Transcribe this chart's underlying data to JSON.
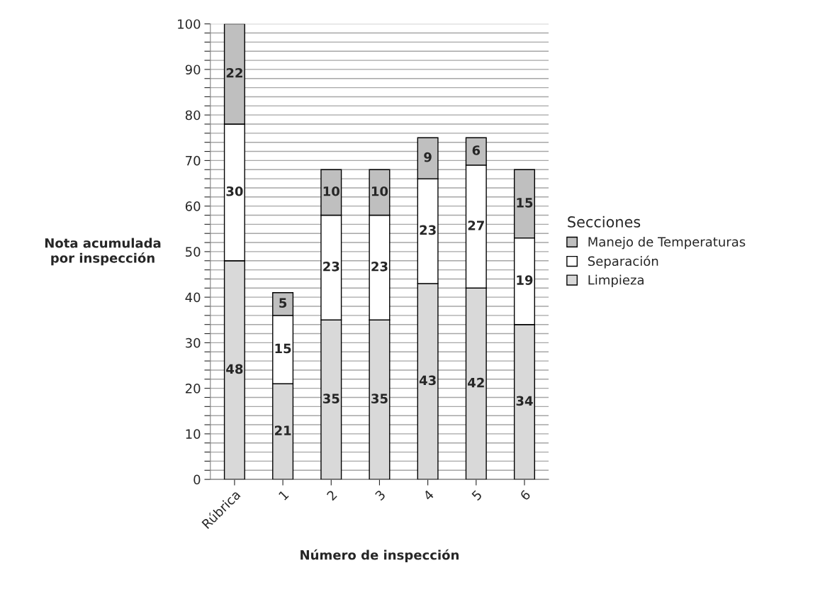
{
  "chart_data": {
    "type": "bar",
    "stacked": true,
    "xlabel": "Número de inspección",
    "ylabel": "Nota acumulada\npor inspección",
    "legend_title": "Secciones",
    "legend": "right",
    "grid": "y",
    "data_labels": true,
    "categories": [
      "Rúbrica",
      "1",
      "2",
      "3",
      "4",
      "5",
      "6"
    ],
    "series": [
      {
        "name": "Limpieza",
        "color": "#d9d9d9",
        "values": [
          48,
          21,
          35,
          35,
          43,
          42,
          34
        ]
      },
      {
        "name": "Separación",
        "color": "#ffffff",
        "values": [
          30,
          15,
          23,
          23,
          23,
          27,
          19
        ]
      },
      {
        "name": "Manejo de Temperaturas",
        "color": "#bfbfbf",
        "values": [
          22,
          5,
          10,
          10,
          9,
          6,
          15
        ]
      }
    ],
    "ylim": [
      0,
      100
    ],
    "yticks": [
      0,
      {
        "value": 2,
        "label": null
      },
      {
        "value": 4,
        "label": null
      },
      {
        "value": 6,
        "label": null
      },
      {
        "value": 8,
        "label": null
      },
      10,
      {
        "value": 12,
        "label": null
      },
      {
        "value": 14,
        "label": null
      },
      {
        "value": 16,
        "label": null
      },
      {
        "value": 18,
        "label": null
      },
      20,
      {
        "value": 22,
        "label": null
      },
      {
        "value": 24,
        "label": null
      },
      {
        "value": 26,
        "label": null
      },
      {
        "value": 28,
        "label": null
      },
      30,
      {
        "value": 32,
        "label": null
      },
      {
        "value": 34,
        "label": null
      },
      {
        "value": 36,
        "label": null
      },
      {
        "value": 38,
        "label": null
      },
      40,
      {
        "value": 42,
        "label": null
      },
      {
        "value": 44,
        "label": null
      },
      {
        "value": 46,
        "label": null
      },
      {
        "value": 48,
        "label": null
      },
      50,
      {
        "value": 52,
        "label": null
      },
      {
        "value": 54,
        "label": null
      },
      {
        "value": 56,
        "label": null
      },
      {
        "value": 58,
        "label": null
      },
      60,
      {
        "value": 62,
        "label": null
      },
      {
        "value": 64,
        "label": null
      },
      {
        "value": 66,
        "label": null
      },
      {
        "value": 68,
        "label": null
      },
      70,
      {
        "value": 72,
        "label": null
      },
      {
        "value": 74,
        "label": null
      },
      {
        "value": 76,
        "label": null
      },
      {
        "value": 78,
        "label": null
      },
      80,
      {
        "value": 82,
        "label": null
      },
      {
        "value": 84,
        "label": null
      },
      {
        "value": 86,
        "label": null
      },
      {
        "value": 88,
        "label": null
      },
      90,
      {
        "value": 92,
        "label": null
      },
      {
        "value": 94,
        "label": null
      },
      {
        "value": 96,
        "label": null
      },
      {
        "value": 98,
        "label": null
      },
      100
    ]
  }
}
